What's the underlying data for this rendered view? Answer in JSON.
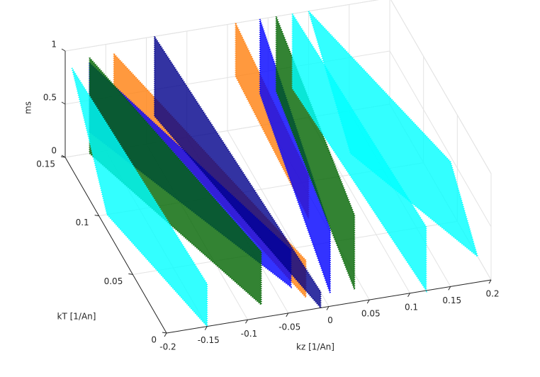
{
  "chart_data": {
    "type": "scatter3d",
    "xlabel": "kz [1/An]",
    "ylabel": "kT [1/An]",
    "zlabel": "ms",
    "xlim": [
      -0.2,
      0.2
    ],
    "xticks": [
      -0.2,
      -0.15,
      -0.1,
      -0.05,
      0,
      0.05,
      0.1,
      0.15,
      0.2
    ],
    "ylim": [
      0,
      0.15
    ],
    "yticks": [
      0,
      0.05,
      0.1,
      0.15
    ],
    "zlim": [
      0,
      1
    ],
    "zticks": [
      0,
      0.5,
      1
    ],
    "grid": true,
    "series": [
      {
        "color": "#ff7f0e",
        "kz": [
          -0.14,
          -0.14,
          -0.02,
          -0.02
        ],
        "kT": [
          0.15,
          0.15,
          0.01,
          0.01
        ],
        "ms": [
          0.9,
          0.6,
          0.0,
          0.35
        ]
      },
      {
        "color": "#0000ff",
        "kz": [
          -0.17,
          -0.17,
          -0.03,
          -0.03
        ],
        "kT": [
          0.15,
          0.15,
          0.02,
          0.02
        ],
        "ms": [
          0.85,
          0.2,
          0.0,
          0.35
        ]
      },
      {
        "color": "#00008b",
        "kz": [
          -0.09,
          -0.09,
          -0.01,
          -0.01
        ],
        "kT": [
          0.15,
          0.15,
          0.0,
          0.0
        ],
        "ms": [
          1.0,
          0.25,
          0.0,
          0.15
        ]
      },
      {
        "color": "#006400",
        "kz": [
          -0.17,
          -0.17,
          -0.075,
          -0.075
        ],
        "kT": [
          0.15,
          0.15,
          0.01,
          0.01
        ],
        "ms": [
          0.9,
          0.0,
          0.0,
          0.5
        ]
      },
      {
        "color": "#00ffff",
        "kz": [
          -0.2,
          -0.19,
          -0.15,
          -0.15
        ],
        "kT": [
          0.14,
          0.1,
          0.0,
          0.0
        ],
        "ms": [
          0.95,
          0.0,
          0.0,
          0.4
        ]
      },
      {
        "color": "#ff7f0e",
        "kz": [
          0.01,
          0.01,
          0.0,
          0.0
        ],
        "kT": [
          0.15,
          0.15,
          0.03,
          0.03
        ],
        "ms": [
          1.0,
          0.5,
          0.5,
          0.9
        ]
      },
      {
        "color": "#0000ff",
        "kz": [
          0.04,
          0.04,
          0.01,
          0.01
        ],
        "kT": [
          0.15,
          0.15,
          0.01,
          0.01
        ],
        "ms": [
          1.0,
          0.3,
          0.0,
          0.6
        ]
      },
      {
        "color": "#006400",
        "kz": [
          0.06,
          0.06,
          0.04,
          0.04
        ],
        "kT": [
          0.15,
          0.15,
          0.01,
          0.01
        ],
        "ms": [
          1.0,
          0.3,
          0.0,
          0.7
        ]
      },
      {
        "color": "#00ffff",
        "kz": [
          0.1,
          0.11,
          0.2,
          0.2
        ],
        "kT": [
          0.15,
          0.1,
          0.02,
          0.06
        ],
        "ms": [
          1.0,
          0.2,
          0.0,
          0.45
        ]
      },
      {
        "color": "#00ffff",
        "kz": [
          0.08,
          0.08,
          0.12,
          0.12
        ],
        "kT": [
          0.15,
          0.15,
          0.0,
          0.0
        ],
        "ms": [
          1.0,
          0.3,
          0.0,
          0.6
        ]
      }
    ]
  }
}
